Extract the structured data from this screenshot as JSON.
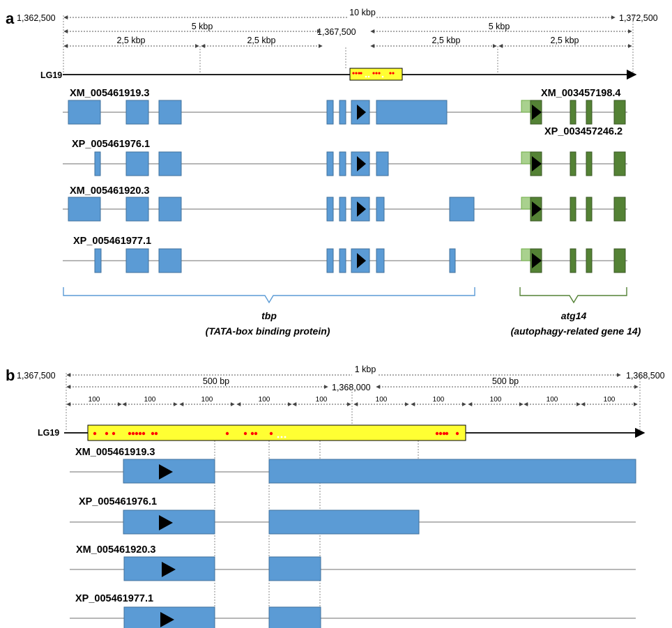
{
  "panel_a": {
    "letter": "a",
    "coord_start": "1,362,500",
    "coord_mid": "1,367,500",
    "coord_end": "1,372,500",
    "span_total": "10 kbp",
    "span_half_left": "5 kbp",
    "span_half_right": "5 kbp",
    "quarters": [
      "2,5 kbp",
      "2,5 kbp",
      "2,5 kbp",
      "2,5 kbp"
    ],
    "chromosome": "LG19",
    "tbp_transcripts": [
      {
        "id": "XM_005461919.3"
      },
      {
        "id": "XP_005461976.1"
      },
      {
        "id": "XM_005461920.3"
      },
      {
        "id": "XP_005461977.1"
      }
    ],
    "atg14_labels": [
      "XM_003457198.4",
      "XP_003457246.2"
    ],
    "gene_tbp_name": "tbp",
    "gene_tbp_desc": "(TATA-box binding protein)",
    "gene_atg14_name": "atg14",
    "gene_atg14_desc": "(autophagy-related gene 14)"
  },
  "panel_b": {
    "letter": "b",
    "coord_start": "1,367,500",
    "coord_mid": "1,368,000",
    "coord_end": "1,368,500",
    "span_total": "1 kbp",
    "span_half_left": "500 bp",
    "span_half_right": "500 bp",
    "tenths": [
      "100",
      "100",
      "100",
      "100",
      "100",
      "100",
      "100",
      "100",
      "100",
      "100"
    ],
    "chromosome": "LG19",
    "transcripts": [
      {
        "id": "XM_005461919.3"
      },
      {
        "id": "XP_005461976.1"
      },
      {
        "id": "XM_005461920.3"
      },
      {
        "id": "XP_005461977.1"
      }
    ]
  },
  "colors": {
    "tbp_exon": "#5b9bd5",
    "atg14_exon": "#548235",
    "atg14_utr": "#a9d18e",
    "highlight_region": "#ffff33",
    "marker": "#ff0000"
  }
}
